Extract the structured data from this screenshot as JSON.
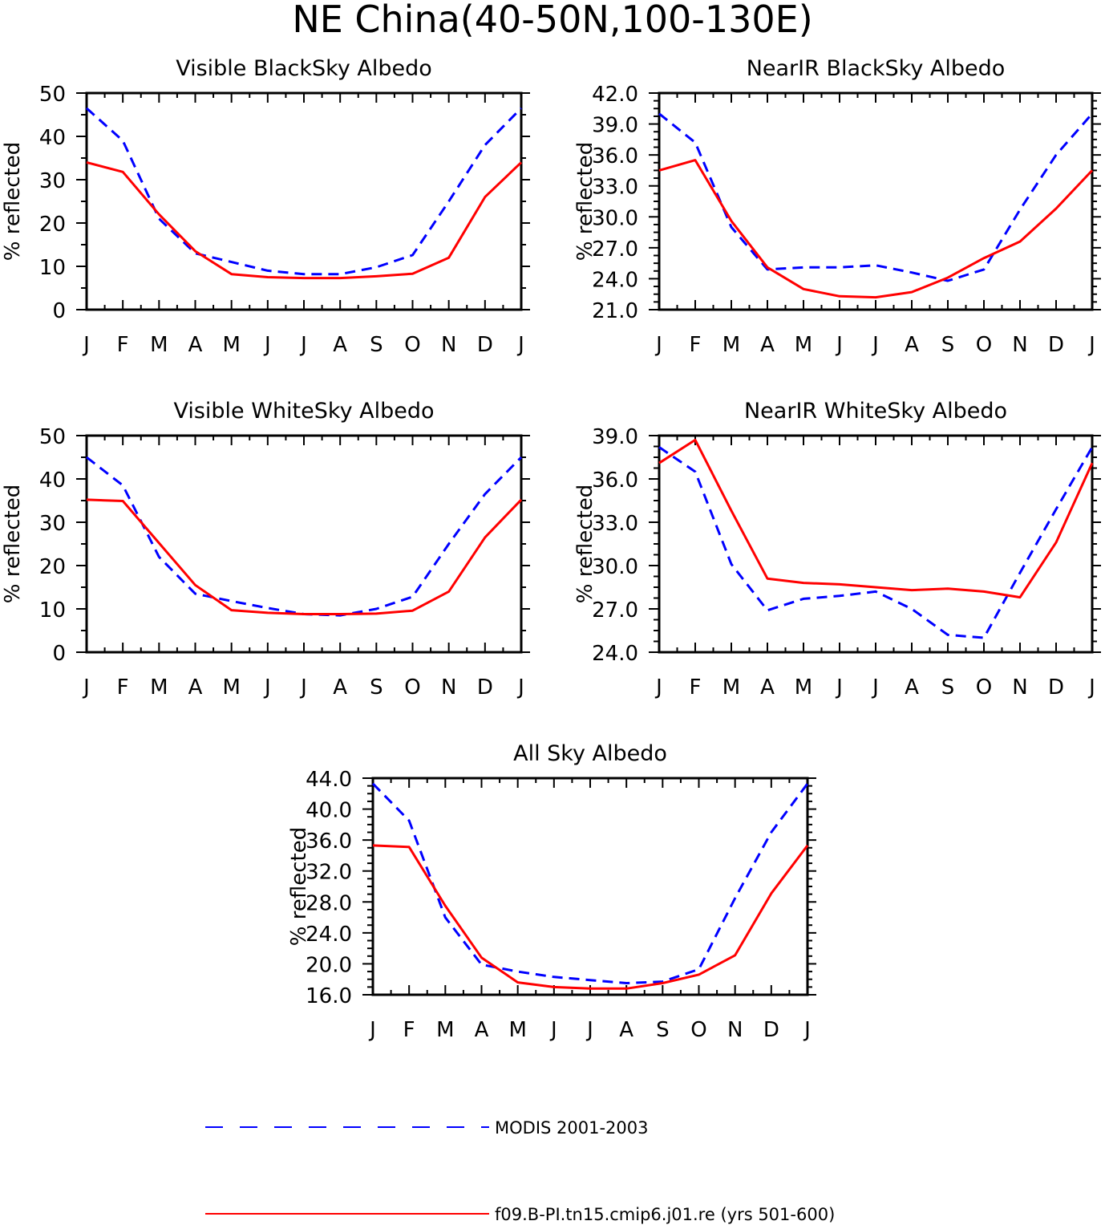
{
  "title": "NE China(40-50N,100-130E)",
  "colors": {
    "modis": "#0000ff",
    "model": "#ff0000",
    "axis": "#000000"
  },
  "legend": {
    "modis_label": "MODIS 2001-2003",
    "model_label": "f09.B-PI.tn15.cmip6.j01.re (yrs 501-600)"
  },
  "chart_data": [
    {
      "type": "line",
      "title": "Visible BlackSky Albedo",
      "ylabel": "% reflected",
      "xlabel": "",
      "categories": [
        "J",
        "F",
        "M",
        "A",
        "M",
        "J",
        "J",
        "A",
        "S",
        "O",
        "N",
        "D",
        "J"
      ],
      "ylim": [
        0,
        50
      ],
      "yticks": [
        "0",
        "10",
        "20",
        "30",
        "40",
        "50"
      ],
      "series": [
        {
          "name": "MODIS 2001-2003",
          "style": "dashed",
          "values": [
            46.5,
            39,
            21,
            13,
            11,
            9,
            8.2,
            8.2,
            9.8,
            12.6,
            25,
            38,
            46.5
          ]
        },
        {
          "name": "f09.B-PI.tn15.cmip6.j01.re (yrs 501-600)",
          "style": "solid",
          "values": [
            34,
            31.8,
            22,
            13.5,
            8.2,
            7.5,
            7.3,
            7.3,
            7.7,
            8.3,
            12,
            26,
            34
          ]
        }
      ]
    },
    {
      "type": "line",
      "title": "NearIR BlackSky Albedo",
      "ylabel": "% reflected",
      "xlabel": "",
      "categories": [
        "J",
        "F",
        "M",
        "A",
        "M",
        "J",
        "J",
        "A",
        "S",
        "O",
        "N",
        "D",
        "J"
      ],
      "ylim": [
        21,
        42
      ],
      "yticks": [
        "21.0",
        "24.0",
        "27.0",
        "30.0",
        "33.0",
        "36.0",
        "39.0",
        "42.0"
      ],
      "series": [
        {
          "name": "MODIS 2001-2003",
          "style": "dashed",
          "values": [
            40,
            37.2,
            29,
            24.9,
            25.1,
            25.1,
            25.3,
            24.6,
            23.8,
            24.9,
            30.7,
            36,
            40
          ]
        },
        {
          "name": "f09.B-PI.tn15.cmip6.j01.re (yrs 501-600)",
          "style": "solid",
          "values": [
            34.5,
            35.5,
            29.6,
            25.1,
            23,
            22.3,
            22.2,
            22.7,
            24.1,
            26,
            27.6,
            30.8,
            34.5
          ]
        }
      ]
    },
    {
      "type": "line",
      "title": "Visible WhiteSky Albedo",
      "ylabel": "% reflected",
      "xlabel": "",
      "categories": [
        "J",
        "F",
        "M",
        "A",
        "M",
        "J",
        "J",
        "A",
        "S",
        "O",
        "N",
        "D",
        "J"
      ],
      "ylim": [
        0,
        50
      ],
      "yticks": [
        "0",
        "10",
        "20",
        "30",
        "40",
        "50"
      ],
      "series": [
        {
          "name": "MODIS 2001-2003",
          "style": "dashed",
          "values": [
            45,
            38.5,
            22,
            13.5,
            11.8,
            10.2,
            8.8,
            8.5,
            10,
            12.8,
            25,
            36.5,
            45
          ]
        },
        {
          "name": "f09.B-PI.tn15.cmip6.j01.re (yrs 501-600)",
          "style": "solid",
          "values": [
            35.2,
            34.9,
            25.2,
            15.5,
            9.7,
            9.1,
            8.8,
            8.8,
            8.9,
            9.6,
            14,
            26.5,
            35.2
          ]
        }
      ]
    },
    {
      "type": "line",
      "title": "NearIR WhiteSky Albedo",
      "ylabel": "% reflected",
      "xlabel": "",
      "categories": [
        "J",
        "F",
        "M",
        "A",
        "M",
        "J",
        "J",
        "A",
        "S",
        "O",
        "N",
        "D",
        "J"
      ],
      "ylim": [
        24,
        39
      ],
      "yticks": [
        "24.0",
        "27.0",
        "30.0",
        "33.0",
        "36.0",
        "39.0"
      ],
      "series": [
        {
          "name": "MODIS 2001-2003",
          "style": "dashed",
          "values": [
            38.2,
            36.5,
            30.1,
            26.9,
            27.7,
            27.9,
            28.2,
            27,
            25.2,
            25,
            29.5,
            33.9,
            38.2
          ]
        },
        {
          "name": "f09.B-PI.tn15.cmip6.j01.re (yrs 501-600)",
          "style": "solid",
          "values": [
            37.1,
            38.7,
            33.8,
            29.1,
            28.8,
            28.7,
            28.5,
            28.3,
            28.4,
            28.2,
            27.8,
            31.6,
            37.1
          ]
        }
      ]
    },
    {
      "type": "line",
      "title": "All Sky Albedo",
      "ylabel": "% reflected",
      "xlabel": "",
      "categories": [
        "J",
        "F",
        "M",
        "A",
        "M",
        "J",
        "J",
        "A",
        "S",
        "O",
        "N",
        "D",
        "J"
      ],
      "ylim": [
        16,
        44
      ],
      "yticks": [
        "16.0",
        "20.0",
        "24.0",
        "28.0",
        "32.0",
        "36.0",
        "40.0",
        "44.0"
      ],
      "series": [
        {
          "name": "MODIS 2001-2003",
          "style": "dashed",
          "values": [
            43.3,
            38.5,
            26,
            19.9,
            19,
            18.3,
            17.9,
            17.5,
            17.7,
            19.3,
            28.5,
            37,
            43.3
          ]
        },
        {
          "name": "f09.B-PI.tn15.cmip6.j01.re (yrs 501-600)",
          "style": "solid",
          "values": [
            35.3,
            35.1,
            27.5,
            20.8,
            17.6,
            17,
            16.8,
            16.8,
            17.5,
            18.6,
            21.1,
            29.1,
            35.3
          ]
        }
      ]
    }
  ]
}
